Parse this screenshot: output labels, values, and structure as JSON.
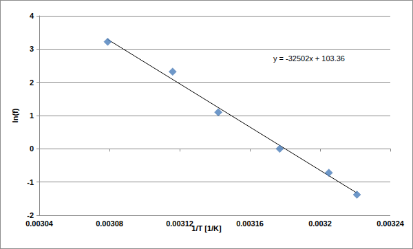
{
  "chart_data": {
    "type": "scatter",
    "x_label": "1/T [1/K]",
    "y_label": "ln(f)",
    "annotation": "y = -32502x + 103.36",
    "series": [
      {
        "type": "scatter",
        "marker": "diamond",
        "color": "#4a7ebb",
        "x": [
          0.003079,
          0.003116,
          0.003142,
          0.003177,
          0.003205,
          0.003221
        ],
        "values": [
          3.22,
          2.32,
          1.1,
          0.0,
          -0.72,
          -1.38
        ]
      },
      {
        "type": "line",
        "line_style": "solid",
        "color": "#000000",
        "x": [
          0.003079,
          0.003221
        ],
        "values": [
          3.29,
          -1.33
        ]
      }
    ],
    "xlim": [
      0.00304,
      0.00324
    ],
    "xticks": [
      0.00304,
      0.00308,
      0.00312,
      0.00316,
      0.0032,
      0.00324
    ],
    "ylim": [
      -2,
      4
    ],
    "yticks": [
      -2,
      -1,
      0,
      1,
      2,
      3,
      4
    ],
    "grid": true
  }
}
